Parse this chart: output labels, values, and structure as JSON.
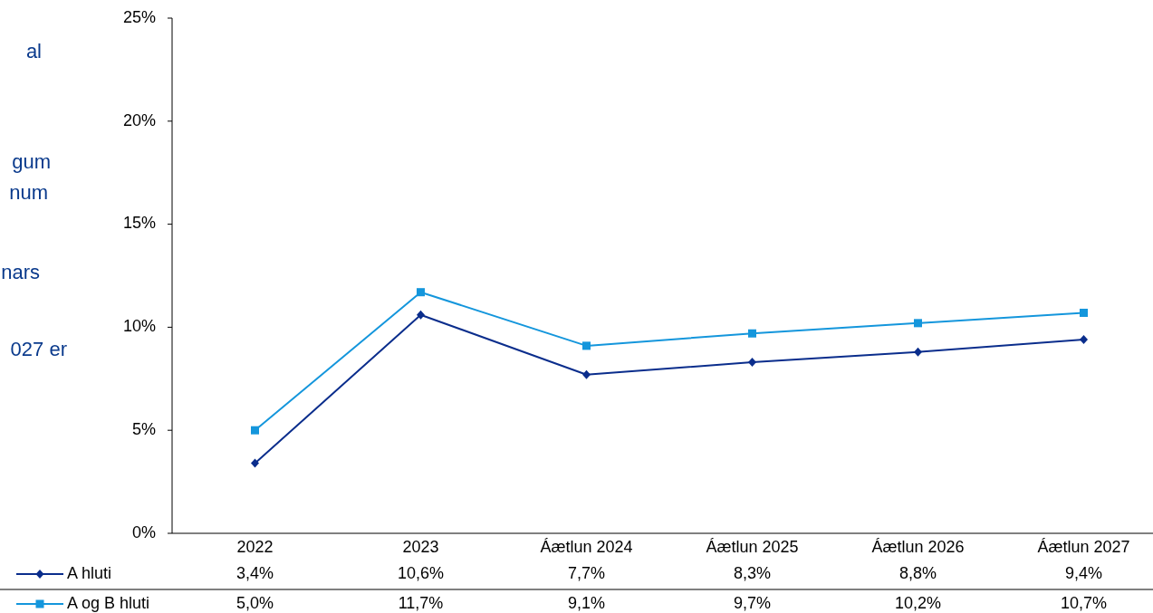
{
  "chart_data": {
    "type": "line",
    "categories": [
      "2022",
      "2023",
      "Áætlun 2024",
      "Áætlun 2025",
      "Áætlun 2026",
      "Áætlun 2027"
    ],
    "series": [
      {
        "name": "A hluti",
        "color": "#0a2d8c",
        "marker": "diamond",
        "values": [
          3.4,
          10.6,
          7.7,
          8.3,
          8.8,
          9.4
        ],
        "value_labels": [
          "3,4%",
          "10,6%",
          "7,7%",
          "8,3%",
          "8,8%",
          "9,4%"
        ]
      },
      {
        "name": "A og B hluti",
        "color": "#1496dc",
        "marker": "square",
        "values": [
          5.0,
          11.7,
          9.1,
          9.7,
          10.2,
          10.7
        ],
        "value_labels": [
          "5,0%",
          "11,7%",
          "9,1%",
          "9,7%",
          "10,2%",
          "10,7%"
        ]
      }
    ],
    "ylim": [
      0,
      25
    ],
    "yticks": [
      {
        "value": 0,
        "label": "0%"
      },
      {
        "value": 5,
        "label": "5%"
      },
      {
        "value": 10,
        "label": "10%"
      },
      {
        "value": 15,
        "label": "15%"
      },
      {
        "value": 20,
        "label": "20%"
      },
      {
        "value": 25,
        "label": "25%"
      }
    ],
    "grid": false,
    "legend": "bottom left",
    "line_style": "solid",
    "annotations": [
      "al",
      "gum",
      "num",
      "nars",
      "027 er"
    ]
  }
}
